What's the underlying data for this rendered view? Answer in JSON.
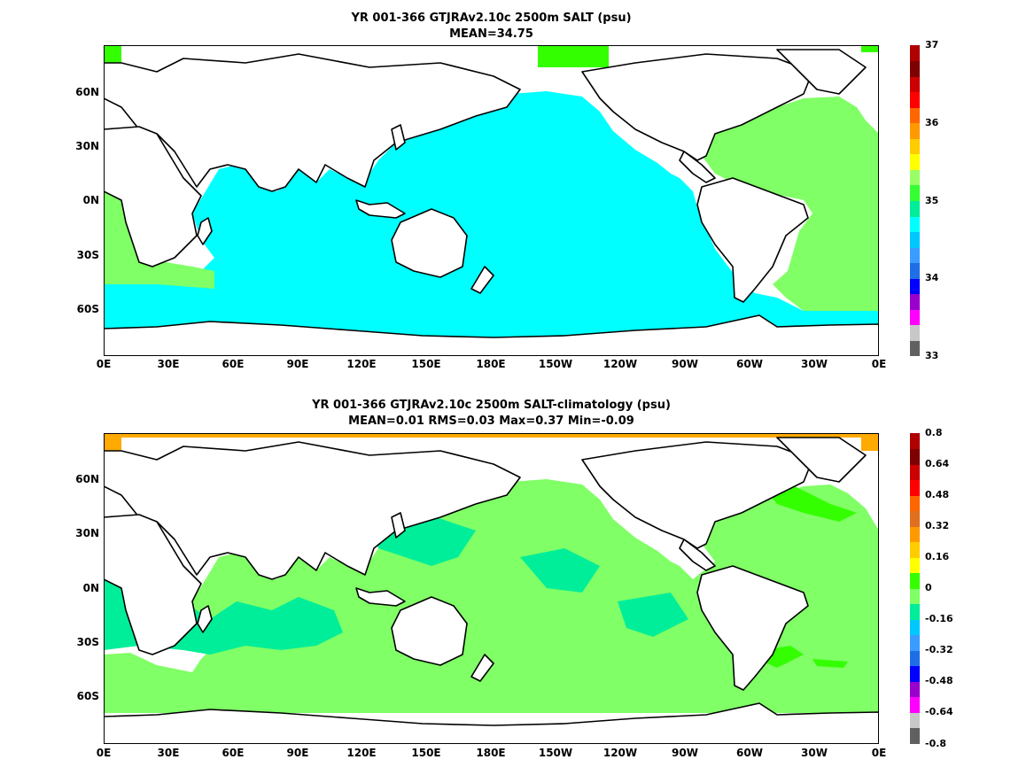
{
  "panels": [
    {
      "title_line1": "YR 001-366 GTJRAv2.10c 2500m SALT (psu)",
      "title_line2": "MEAN=34.75",
      "colorbar": {
        "colors": [
          "#606060",
          "#c8c8c8",
          "#ff00ff",
          "#9900cc",
          "#0000ff",
          "#1e6fe6",
          "#3b9cff",
          "#00c8ff",
          "#00ffff",
          "#00ee99",
          "#33ff33",
          "#99ff66",
          "#ffff00",
          "#ffcc00",
          "#ff9900",
          "#ff6600",
          "#ff0000",
          "#cc0000",
          "#7f0000",
          "#b00000"
        ],
        "labels": [
          "37",
          "36",
          "35",
          "34",
          "33"
        ]
      },
      "map_colors": {
        "ocean": "#00ffff",
        "atlantic": "#80ff66",
        "arctic": "#33ff00",
        "land": "#ffffff",
        "coast": "#000000"
      }
    },
    {
      "title_line1": "YR 001-366 GTJRAv2.10c 2500m SALT-climatology (psu)",
      "title_line2": "MEAN=0.01   RMS=0.03   Max=0.37   Min=-0.09",
      "colorbar": {
        "colors": [
          "#606060",
          "#c8c8c8",
          "#ff00ff",
          "#9900cc",
          "#0000ff",
          "#1e6fe6",
          "#3b9cff",
          "#00c8ff",
          "#00ee99",
          "#80ff66",
          "#33ff00",
          "#ffff00",
          "#ffcc00",
          "#ff9900",
          "#e07020",
          "#ff6600",
          "#ff0000",
          "#cc0000",
          "#7f0000",
          "#b00000"
        ],
        "labels": [
          "0.8",
          "0.64",
          "0.48",
          "0.32",
          "0.16",
          "0",
          "-0.16",
          "-0.32",
          "-0.48",
          "-0.64",
          "-0.8"
        ]
      },
      "map_colors": {
        "ocean": "#80ff66",
        "indian": "#00ee99",
        "arctic": "#ffaa00",
        "land": "#ffffff",
        "coast": "#000000"
      }
    }
  ],
  "axes": {
    "lat_labels": [
      "60N",
      "30N",
      "0N",
      "30S",
      "60S"
    ],
    "lon_labels": [
      "0E",
      "30E",
      "60E",
      "90E",
      "120E",
      "150E",
      "180E",
      "150W",
      "120W",
      "90W",
      "60W",
      "30W",
      "0E"
    ]
  }
}
